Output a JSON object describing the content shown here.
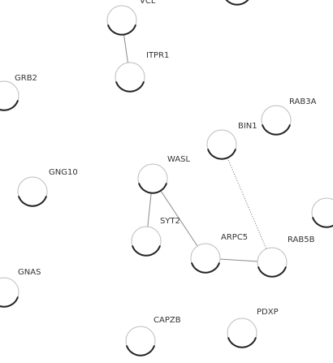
{
  "nodes": [
    {
      "id": "VCL",
      "label": "VCL"
    },
    {
      "id": "ITPR1",
      "label": "ITPR1"
    },
    {
      "id": "GRB2",
      "label": "GRB2"
    },
    {
      "id": "RAB3A",
      "label": "RAB3A"
    },
    {
      "id": "BIN1",
      "label": "BIN1"
    },
    {
      "id": "WASL",
      "label": "WASL"
    },
    {
      "id": "GNG10",
      "label": "GNG10"
    },
    {
      "id": "SYT2",
      "label": "SYT2"
    },
    {
      "id": "ARPC5",
      "label": "ARPC5"
    },
    {
      "id": "RAB5B",
      "label": "RAB5B"
    },
    {
      "id": "GNAS",
      "label": "GNAS"
    },
    {
      "id": "CAPZB",
      "label": "CAPZB"
    },
    {
      "id": "PDXP",
      "label": "PDXP"
    },
    {
      "id": "TOP_RIGHT",
      "label": ""
    },
    {
      "id": "RIGHT_EDGE",
      "label": ""
    }
  ],
  "edges": [
    {
      "from": "VCL",
      "to": "ITPR1"
    },
    {
      "from": "WASL",
      "to": "SYT2"
    },
    {
      "from": "WASL",
      "to": "ARPC5"
    },
    {
      "from": "BIN1",
      "to": "RAB5B"
    },
    {
      "from": "ARPC5",
      "to": "RAB5B"
    }
  ]
}
